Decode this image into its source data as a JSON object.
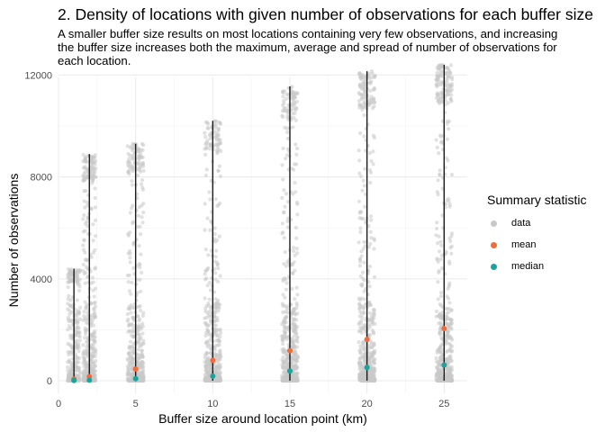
{
  "chart_data": {
    "type": "scatter",
    "title": "2. Density of locations with given number of observations for each buffer size",
    "subtitle_lines": [
      "A smaller buffer size results on most locations containing very few observations, and increasing",
      "the buffer size increases both the maximum, average and spread of number of observations for",
      "each location."
    ],
    "xlabel": "Buffer size around location point (km)",
    "ylabel": "Number of observations",
    "xlim": [
      0,
      26.5
    ],
    "ylim": [
      0,
      12400
    ],
    "x_ticks": [
      0,
      5,
      10,
      15,
      20,
      25
    ],
    "y_ticks": [
      0,
      4000,
      8000,
      12000
    ],
    "grid": true,
    "legend": {
      "title": "Summary statistic",
      "placement": "right",
      "entries": [
        {
          "label": "data",
          "color": "#c8c8c8"
        },
        {
          "label": "mean",
          "color": "#f26b3a"
        },
        {
          "label": "median",
          "color": "#1ba39c"
        }
      ]
    },
    "series": [
      {
        "x": 1,
        "mean": 60,
        "median": 10,
        "max": 4400
      },
      {
        "x": 2,
        "mean": 160,
        "median": 20,
        "max": 8900
      },
      {
        "x": 5,
        "mean": 460,
        "median": 80,
        "max": 9300
      },
      {
        "x": 10,
        "mean": 800,
        "median": 180,
        "max": 10200
      },
      {
        "x": 15,
        "mean": 1180,
        "median": 380,
        "max": 11550
      },
      {
        "x": 20,
        "mean": 1620,
        "median": 520,
        "max": 12150
      },
      {
        "x": 25,
        "mean": 2050,
        "median": 620,
        "max": 12400
      }
    ]
  }
}
